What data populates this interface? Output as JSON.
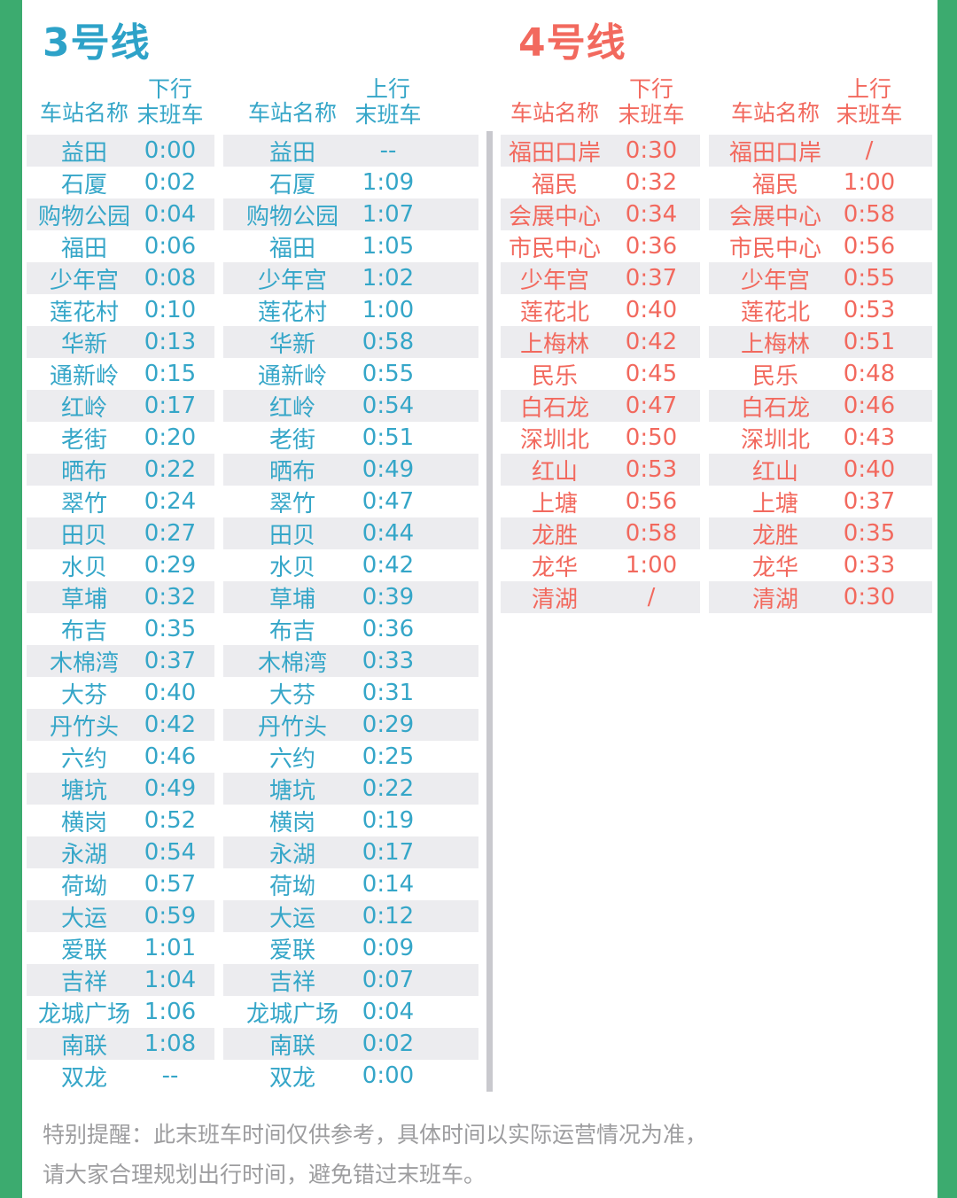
{
  "page": {
    "border_color": "#3CAB6F",
    "stripe_color": "#ECECEF",
    "divider_color": "#C9C9CE"
  },
  "lines": [
    {
      "title": "3号线",
      "color": "#35A6C8",
      "headers": {
        "station": "车站名称",
        "down": "下行",
        "up": "上行",
        "last_train": "末班车"
      },
      "down_rows": [
        {
          "station": "益田",
          "time": "0:00"
        },
        {
          "station": "石厦",
          "time": "0:02"
        },
        {
          "station": "购物公园",
          "time": "0:04"
        },
        {
          "station": "福田",
          "time": "0:06"
        },
        {
          "station": "少年宫",
          "time": "0:08"
        },
        {
          "station": "莲花村",
          "time": "0:10"
        },
        {
          "station": "华新",
          "time": "0:13"
        },
        {
          "station": "通新岭",
          "time": "0:15"
        },
        {
          "station": "红岭",
          "time": "0:17"
        },
        {
          "station": "老街",
          "time": "0:20"
        },
        {
          "station": "晒布",
          "time": "0:22"
        },
        {
          "station": "翠竹",
          "time": "0:24"
        },
        {
          "station": "田贝",
          "time": "0:27"
        },
        {
          "station": "水贝",
          "time": "0:29"
        },
        {
          "station": "草埔",
          "time": "0:32"
        },
        {
          "station": "布吉",
          "time": "0:35"
        },
        {
          "station": "木棉湾",
          "time": "0:37"
        },
        {
          "station": "大芬",
          "time": "0:40"
        },
        {
          "station": "丹竹头",
          "time": "0:42"
        },
        {
          "station": "六约",
          "time": "0:46"
        },
        {
          "station": "塘坑",
          "time": "0:49"
        },
        {
          "station": "横岗",
          "time": "0:52"
        },
        {
          "station": "永湖",
          "time": "0:54"
        },
        {
          "station": "荷坳",
          "time": "0:57"
        },
        {
          "station": "大运",
          "time": "0:59"
        },
        {
          "station": "爱联",
          "time": "1:01"
        },
        {
          "station": "吉祥",
          "time": "1:04"
        },
        {
          "station": "龙城广场",
          "time": "1:06"
        },
        {
          "station": "南联",
          "time": "1:08"
        },
        {
          "station": "双龙",
          "time": "--"
        }
      ],
      "up_rows": [
        {
          "station": "益田",
          "time": "--"
        },
        {
          "station": "石厦",
          "time": "1:09"
        },
        {
          "station": "购物公园",
          "time": "1:07"
        },
        {
          "station": "福田",
          "time": "1:05"
        },
        {
          "station": "少年宫",
          "time": "1:02"
        },
        {
          "station": "莲花村",
          "time": "1:00"
        },
        {
          "station": "华新",
          "time": "0:58"
        },
        {
          "station": "通新岭",
          "time": "0:55"
        },
        {
          "station": "红岭",
          "time": "0:54"
        },
        {
          "station": "老街",
          "time": "0:51"
        },
        {
          "station": "晒布",
          "time": "0:49"
        },
        {
          "station": "翠竹",
          "time": "0:47"
        },
        {
          "station": "田贝",
          "time": "0:44"
        },
        {
          "station": "水贝",
          "time": "0:42"
        },
        {
          "station": "草埔",
          "time": "0:39"
        },
        {
          "station": "布吉",
          "time": "0:36"
        },
        {
          "station": "木棉湾",
          "time": "0:33"
        },
        {
          "station": "大芬",
          "time": "0:31"
        },
        {
          "station": "丹竹头",
          "time": "0:29"
        },
        {
          "station": "六约",
          "time": "0:25"
        },
        {
          "station": "塘坑",
          "time": "0:22"
        },
        {
          "station": "横岗",
          "time": "0:19"
        },
        {
          "station": "永湖",
          "time": "0:17"
        },
        {
          "station": "荷坳",
          "time": "0:14"
        },
        {
          "station": "大运",
          "time": "0:12"
        },
        {
          "station": "爱联",
          "time": "0:09"
        },
        {
          "station": "吉祥",
          "time": "0:07"
        },
        {
          "station": "龙城广场",
          "time": "0:04"
        },
        {
          "station": "南联",
          "time": "0:02"
        },
        {
          "station": "双龙",
          "time": "0:00"
        }
      ]
    },
    {
      "title": "4号线",
      "color": "#F2695E",
      "headers": {
        "station": "车站名称",
        "down": "下行",
        "up": "上行",
        "last_train": "末班车"
      },
      "down_rows": [
        {
          "station": "福田口岸",
          "time": "0:30"
        },
        {
          "station": "福民",
          "time": "0:32"
        },
        {
          "station": "会展中心",
          "time": "0:34"
        },
        {
          "station": "市民中心",
          "time": "0:36"
        },
        {
          "station": "少年宫",
          "time": "0:37"
        },
        {
          "station": "莲花北",
          "time": "0:40"
        },
        {
          "station": "上梅林",
          "time": "0:42"
        },
        {
          "station": "民乐",
          "time": "0:45"
        },
        {
          "station": "白石龙",
          "time": "0:47"
        },
        {
          "station": "深圳北",
          "time": "0:50"
        },
        {
          "station": "红山",
          "time": "0:53"
        },
        {
          "station": "上塘",
          "time": "0:56"
        },
        {
          "station": "龙胜",
          "time": "0:58"
        },
        {
          "station": "龙华",
          "time": "1:00"
        },
        {
          "station": "清湖",
          "time": "/"
        }
      ],
      "up_rows": [
        {
          "station": "福田口岸",
          "time": "/"
        },
        {
          "station": "福民",
          "time": "1:00"
        },
        {
          "station": "会展中心",
          "time": "0:58"
        },
        {
          "station": "市民中心",
          "time": "0:56"
        },
        {
          "station": "少年宫",
          "time": "0:55"
        },
        {
          "station": "莲花北",
          "time": "0:53"
        },
        {
          "station": "上梅林",
          "time": "0:51"
        },
        {
          "station": "民乐",
          "time": "0:48"
        },
        {
          "station": "白石龙",
          "time": "0:46"
        },
        {
          "station": "深圳北",
          "time": "0:43"
        },
        {
          "station": "红山",
          "time": "0:40"
        },
        {
          "station": "上塘",
          "time": "0:37"
        },
        {
          "station": "龙胜",
          "time": "0:35"
        },
        {
          "station": "龙华",
          "time": "0:33"
        },
        {
          "station": "清湖",
          "time": "0:30"
        }
      ]
    }
  ],
  "footer": {
    "line1": "特别提醒：此末班车时间仅供参考，具体时间以实际运营情况为准，",
    "line2": "请大家合理规划出行时间，避免错过末班车。"
  }
}
